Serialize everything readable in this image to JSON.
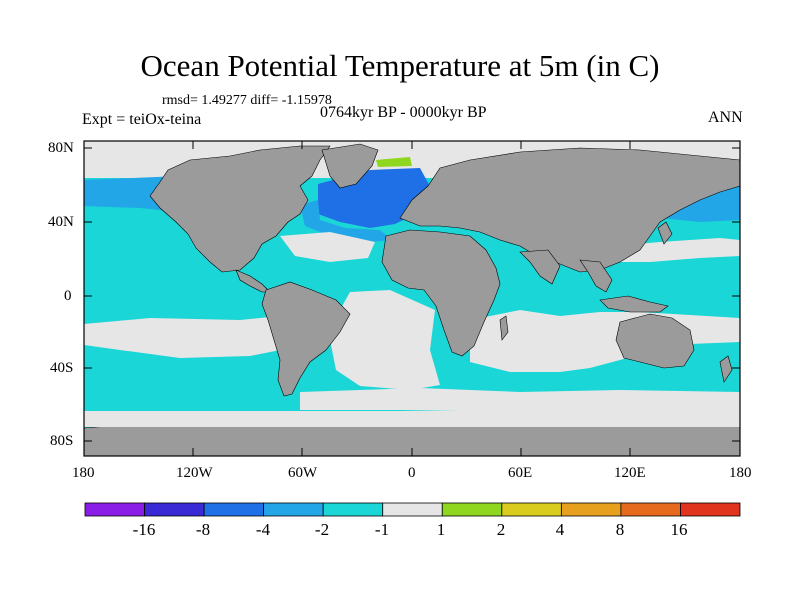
{
  "title": "Ocean Potential Temperature at 5m (in C)",
  "stats": "rmsd= 1.49277 diff= -1.15978",
  "experiment": "Expt = teiOx-teina",
  "period": "0764kyr BP - 0000kyr BP",
  "season": "ANN",
  "lat_ticks": [
    "80N",
    "40N",
    "0",
    "40S",
    "80S"
  ],
  "lon_ticks": [
    "180",
    "120W",
    "60W",
    "0",
    "60E",
    "120E",
    "180"
  ],
  "colorbar": {
    "labels": [
      "-16",
      "-8",
      "-4",
      "-2",
      "-1",
      "1",
      "2",
      "4",
      "8",
      "16"
    ],
    "colors": [
      "#8a1ee6",
      "#3a2ad6",
      "#1f6fe6",
      "#22a6e8",
      "#1ad6d6",
      "#e6e6e6",
      "#8fd61e",
      "#d9cc1e",
      "#e6a01e",
      "#e66a1e",
      "#e0341e"
    ]
  },
  "legend_colors": {
    "land": "#9b9b9b",
    "ice": "#e6e6e6",
    "range_m1_1": "#e6e6e6",
    "range_m2_m1": "#1ad6d6",
    "range_m4_m2": "#22a6e8",
    "range_m8_m4": "#1f6fe6",
    "range_1_2": "#8fd61e"
  }
}
